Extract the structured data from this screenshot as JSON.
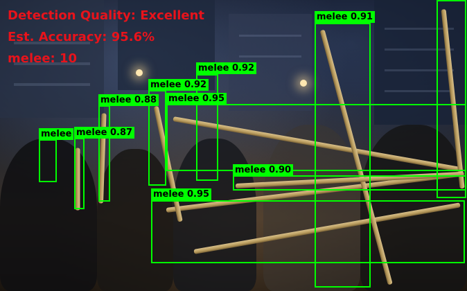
{
  "hud": {
    "quality": "Detection Quality: Excellent",
    "accuracy": "Est. Accuracy: 95.6%",
    "count": "melee: 10"
  },
  "detections": [
    {
      "label": "melee 0.91"
    },
    {
      "label": "melee 0.92"
    },
    {
      "label": "melee 0.92"
    },
    {
      "label": "melee 0.95"
    },
    {
      "label": "melee 0.88"
    },
    {
      "label": "melee 0.87"
    },
    {
      "label": "melee"
    },
    {
      "label": "melee 0.90"
    },
    {
      "label": "melee 0.95"
    },
    {
      "label": ""
    }
  ],
  "colors": {
    "box": "#00ff00",
    "hud_text": "#e8131b"
  }
}
